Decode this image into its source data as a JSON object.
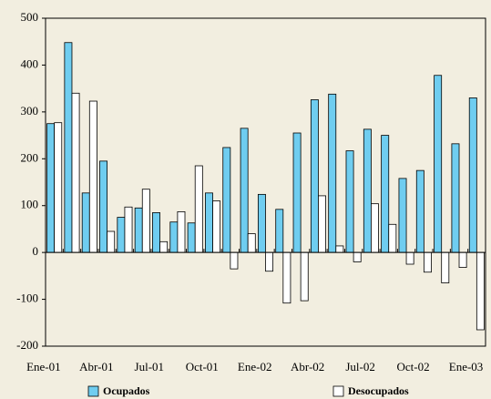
{
  "chart_data": {
    "type": "bar",
    "categories": [
      "Ene-01",
      null,
      null,
      "Abr-01",
      null,
      null,
      "Jul-01",
      null,
      null,
      "Oct-01",
      null,
      null,
      "Ene-02",
      null,
      null,
      "Abr-02",
      null,
      null,
      "Jul-02",
      null,
      null,
      "Oct-02",
      null,
      null,
      "Ene-03"
    ],
    "series": [
      {
        "name": "Ocupados",
        "color": "#6fcdf0",
        "values": [
          275,
          448,
          127,
          195,
          75,
          95,
          85,
          65,
          63,
          127,
          224,
          265,
          124,
          92,
          255,
          326,
          338,
          217,
          263,
          250,
          158,
          175,
          378,
          232,
          330
        ]
      },
      {
        "name": "Desocupados",
        "color": "#ffffff",
        "values": [
          277,
          340,
          323,
          45,
          97,
          135,
          23,
          87,
          185,
          110,
          -35,
          40,
          -40,
          -108,
          -103,
          121,
          14,
          -20,
          104,
          60,
          -25,
          -42,
          -65,
          -32,
          -165
        ]
      }
    ],
    "ylim": [
      -200,
      500
    ],
    "yticks": [
      -200,
      -100,
      0,
      100,
      200,
      300,
      400,
      500
    ]
  }
}
